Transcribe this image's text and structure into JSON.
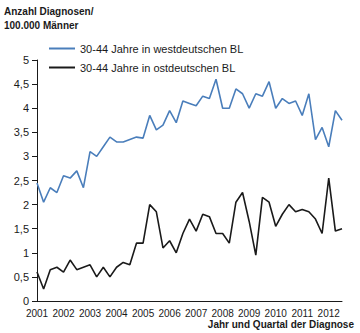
{
  "chart_data": {
    "type": "line",
    "y_label": "Anzahl Diagnosen/\n100.000 Männer",
    "x_label": "Jahr und Quartal der Diagnose",
    "categories": [
      "2001",
      null,
      null,
      null,
      "2002",
      null,
      null,
      null,
      "2003",
      null,
      null,
      null,
      "2004",
      null,
      null,
      null,
      "2005",
      null,
      null,
      null,
      "2006",
      null,
      null,
      null,
      "2007",
      null,
      null,
      null,
      "2008",
      null,
      null,
      null,
      "2009",
      null,
      null,
      null,
      "2010",
      null,
      null,
      null,
      "2011",
      null,
      null,
      null,
      "2012",
      null,
      null
    ],
    "series": [
      {
        "name": "30-44 Jahre in westdeutschen BL",
        "color": "#4a7ebb",
        "values": [
          2.45,
          2.05,
          2.35,
          2.25,
          2.6,
          2.55,
          2.7,
          2.35,
          3.1,
          3.0,
          3.2,
          3.4,
          3.3,
          3.3,
          3.35,
          3.4,
          3.38,
          3.85,
          3.55,
          3.65,
          3.95,
          3.7,
          4.15,
          4.1,
          4.05,
          4.25,
          4.2,
          4.6,
          4.0,
          4.0,
          4.4,
          4.3,
          4.0,
          4.3,
          4.25,
          4.55,
          4.0,
          4.2,
          4.1,
          4.15,
          3.85,
          4.3,
          3.35,
          3.6,
          3.2,
          3.95,
          3.75
        ]
      },
      {
        "name": "30-44 Jahre in ostdeutschen BL",
        "color": "#1a1a1a",
        "values": [
          0.6,
          0.25,
          0.65,
          0.7,
          0.6,
          0.85,
          0.65,
          0.7,
          0.75,
          0.5,
          0.7,
          0.5,
          0.7,
          0.8,
          0.75,
          1.2,
          1.2,
          2.0,
          1.85,
          1.1,
          1.25,
          1.0,
          1.4,
          1.7,
          1.45,
          1.8,
          1.75,
          1.4,
          1.4,
          1.2,
          2.05,
          2.25,
          1.65,
          0.95,
          2.15,
          2.05,
          1.55,
          1.8,
          2.0,
          1.85,
          1.9,
          1.85,
          1.7,
          1.4,
          2.55,
          1.45,
          1.5
        ]
      }
    ],
    "ylim": [
      0,
      5
    ],
    "yticks": [
      0,
      {
        "value": 0.5,
        "label": "0,5"
      },
      1,
      {
        "value": 1.5,
        "label": "1,5"
      },
      2,
      {
        "value": 2.5,
        "label": "2,5"
      },
      3,
      {
        "value": 3.5,
        "label": "3,5"
      },
      4,
      {
        "value": 4.5,
        "label": "4,5"
      },
      5
    ],
    "grid": false,
    "legend": "upper left"
  }
}
